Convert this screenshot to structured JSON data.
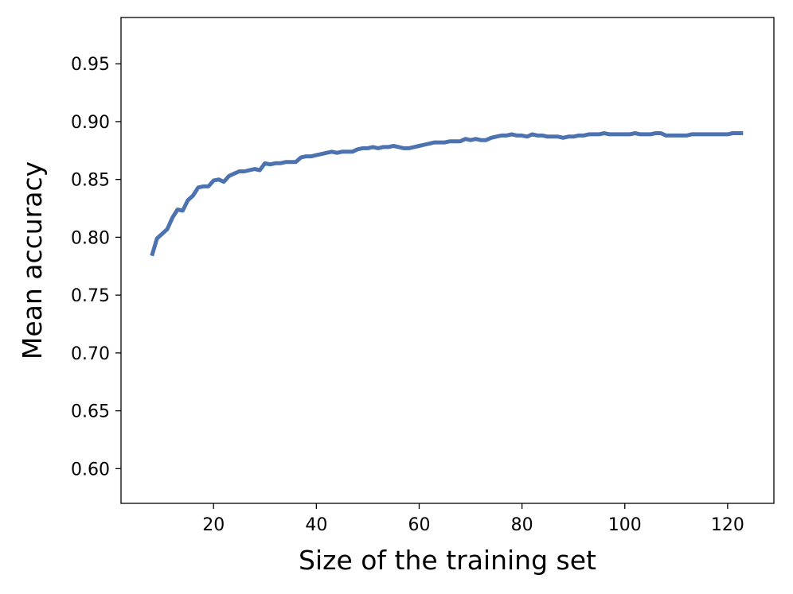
{
  "chart_data": {
    "type": "line",
    "title": "",
    "xlabel": "Size of the training set",
    "ylabel": "Mean accuracy",
    "xlim": [
      2,
      129
    ],
    "ylim": [
      0.57,
      0.99
    ],
    "x_ticks": [
      20,
      40,
      60,
      80,
      100,
      120
    ],
    "x_tick_labels": [
      "20",
      "40",
      "60",
      "80",
      "100",
      "120"
    ],
    "y_ticks": [
      0.6,
      0.65,
      0.7,
      0.75,
      0.8,
      0.85,
      0.9,
      0.95
    ],
    "y_tick_labels": [
      "0.60",
      "0.65",
      "0.70",
      "0.75",
      "0.80",
      "0.85",
      "0.90",
      "0.95"
    ],
    "grid": false,
    "colors": {
      "series": "#4c72b0",
      "axes": "#000000"
    },
    "series": [
      {
        "x": [
          8,
          9,
          10,
          11,
          12,
          13,
          14,
          15,
          16,
          17,
          18,
          19,
          20,
          21,
          22,
          23,
          24,
          25,
          26,
          27,
          28,
          29,
          30,
          31,
          32,
          33,
          34,
          35,
          36,
          37,
          38,
          39,
          40,
          41,
          42,
          43,
          44,
          45,
          46,
          47,
          48,
          49,
          50,
          51,
          52,
          53,
          54,
          55,
          56,
          57,
          58,
          59,
          60,
          61,
          62,
          63,
          64,
          65,
          66,
          67,
          68,
          69,
          70,
          71,
          72,
          73,
          74,
          75,
          76,
          77,
          78,
          79,
          80,
          81,
          82,
          83,
          84,
          85,
          86,
          87,
          88,
          89,
          90,
          91,
          92,
          93,
          94,
          95,
          96,
          97,
          98,
          99,
          100,
          101,
          102,
          103,
          104,
          105,
          106,
          107,
          108,
          109,
          110,
          111,
          112,
          113,
          114,
          115,
          116,
          117,
          118,
          119,
          120,
          121,
          122,
          123
        ],
        "y": [
          0.784,
          0.799,
          0.803,
          0.807,
          0.817,
          0.824,
          0.823,
          0.832,
          0.836,
          0.843,
          0.844,
          0.844,
          0.849,
          0.85,
          0.848,
          0.853,
          0.855,
          0.857,
          0.857,
          0.858,
          0.859,
          0.858,
          0.864,
          0.863,
          0.864,
          0.864,
          0.865,
          0.865,
          0.865,
          0.869,
          0.87,
          0.87,
          0.871,
          0.872,
          0.873,
          0.874,
          0.873,
          0.874,
          0.874,
          0.874,
          0.876,
          0.877,
          0.877,
          0.878,
          0.877,
          0.878,
          0.878,
          0.879,
          0.878,
          0.877,
          0.877,
          0.878,
          0.879,
          0.88,
          0.881,
          0.882,
          0.882,
          0.882,
          0.883,
          0.883,
          0.883,
          0.885,
          0.884,
          0.885,
          0.884,
          0.884,
          0.886,
          0.887,
          0.888,
          0.888,
          0.889,
          0.888,
          0.888,
          0.887,
          0.889,
          0.888,
          0.888,
          0.887,
          0.887,
          0.887,
          0.886,
          0.887,
          0.887,
          0.888,
          0.888,
          0.889,
          0.889,
          0.889,
          0.89,
          0.889,
          0.889,
          0.889,
          0.889,
          0.889,
          0.89,
          0.889,
          0.889,
          0.889,
          0.89,
          0.89,
          0.888,
          0.888,
          0.888,
          0.888,
          0.888,
          0.889,
          0.889,
          0.889,
          0.889,
          0.889,
          0.889,
          0.889,
          0.889,
          0.89,
          0.89,
          0.89
        ]
      }
    ]
  }
}
